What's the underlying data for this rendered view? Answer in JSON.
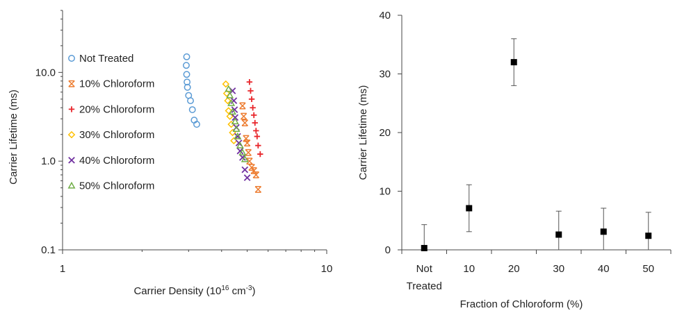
{
  "colors": {
    "axis": "#444444",
    "not_treated": "#5b9bd5",
    "chloroform_10": "#ed7d31",
    "chloroform_20": "#e8262b",
    "chloroform_30": "#ffc000",
    "chloroform_40": "#7030a0",
    "chloroform_50": "#70ad47",
    "bar_marker": "#000000",
    "error_bar": "#555555"
  },
  "chart_data": [
    {
      "type": "scatter",
      "title": "",
      "xlabel_main": "Carrier Density (10",
      "xlabel_sup1": "16",
      "xlabel_mid": " cm",
      "xlabel_sup2": "-3",
      "xlabel_end": ")",
      "ylabel": "Carrier Lifetime (ms)",
      "x_scale": "log",
      "y_scale": "log",
      "xlim": [
        1,
        10
      ],
      "ylim": [
        0.1,
        50
      ],
      "x_ticks": [
        {
          "v": 1,
          "label": "1"
        },
        {
          "v": 10,
          "label": "10"
        }
      ],
      "y_ticks": [
        {
          "v": 0.1,
          "label": "0.1"
        },
        {
          "v": 1,
          "label": "1.0"
        },
        {
          "v": 10,
          "label": "10.0"
        }
      ],
      "grid": false,
      "legend_position": "left",
      "series": [
        {
          "name": "Not Treated",
          "marker": "circle",
          "color_key": "not_treated",
          "x": [
            2.95,
            2.94,
            2.95,
            2.96,
            2.97,
            3.0,
            3.05,
            3.1,
            3.15,
            3.22
          ],
          "y": [
            15.0,
            12.0,
            9.5,
            7.8,
            6.8,
            5.5,
            4.8,
            3.8,
            2.9,
            2.6
          ]
        },
        {
          "name": "10% Chloroform",
          "marker": "star",
          "color_key": "chloroform_10",
          "x": [
            4.8,
            4.85,
            4.9,
            4.95,
            5.0,
            5.05,
            5.1,
            5.2,
            5.3,
            5.4,
            5.5
          ],
          "y": [
            4.2,
            3.2,
            2.7,
            1.8,
            1.6,
            1.25,
            1.0,
            0.85,
            0.78,
            0.7,
            0.48
          ]
        },
        {
          "name": "20% Chloroform",
          "marker": "plus",
          "color_key": "chloroform_20",
          "x": [
            5.1,
            5.15,
            5.2,
            5.25,
            5.3,
            5.35,
            5.4,
            5.45,
            5.5,
            5.6
          ],
          "y": [
            7.8,
            6.2,
            5.0,
            4.0,
            3.3,
            2.7,
            2.2,
            1.9,
            1.5,
            1.2
          ]
        },
        {
          "name": "30% Chloroform",
          "marker": "diamond",
          "color_key": "chloroform_30",
          "x": [
            4.15,
            4.18,
            4.22,
            4.25,
            4.3,
            4.35,
            4.4,
            4.45
          ],
          "y": [
            7.4,
            5.8,
            4.8,
            3.7,
            3.2,
            2.6,
            2.1,
            1.7
          ]
        },
        {
          "name": "40% Chloroform",
          "marker": "x",
          "color_key": "chloroform_40",
          "x": [
            4.4,
            4.45,
            4.48,
            4.5,
            4.55,
            4.6,
            4.65,
            4.7,
            4.8,
            4.9,
            5.0
          ],
          "y": [
            6.2,
            4.8,
            3.8,
            3.1,
            2.4,
            1.9,
            1.6,
            1.3,
            1.1,
            0.8,
            0.65
          ]
        },
        {
          "name": "50% Chloroform",
          "marker": "triangle",
          "color_key": "chloroform_50",
          "x": [
            4.25,
            4.3,
            4.35,
            4.4,
            4.5,
            4.55,
            4.6,
            4.7,
            4.8,
            4.9
          ],
          "y": [
            6.5,
            5.5,
            4.5,
            3.6,
            2.8,
            2.3,
            1.9,
            1.5,
            1.25,
            1.05
          ]
        }
      ]
    },
    {
      "type": "scatter",
      "title": "",
      "xlabel": "Fraction of Chloroform (%)",
      "ylabel": "Carrier Lifetime (ms)",
      "ylim": [
        0,
        40
      ],
      "y_ticks": [
        0,
        10,
        20,
        30,
        40
      ],
      "categories": [
        [
          "Not",
          "Treated"
        ],
        [
          "10"
        ],
        [
          "20"
        ],
        [
          "30"
        ],
        [
          "40"
        ],
        [
          "50"
        ]
      ],
      "values": [
        0.3,
        7.1,
        32.0,
        2.6,
        3.1,
        2.4
      ],
      "error": [
        4.0,
        4.0,
        4.0,
        4.0,
        4.0,
        4.0
      ],
      "grid": false,
      "legend": "none"
    }
  ]
}
